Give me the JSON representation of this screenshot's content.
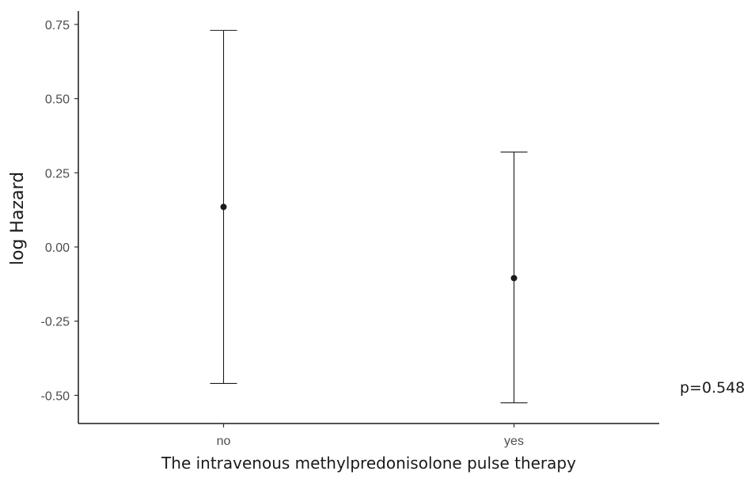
{
  "chart_data": {
    "type": "errorbar",
    "title": "",
    "xlabel": "The intravenous methylpredonisolone pulse therapy",
    "ylabel": "log Hazard",
    "categories": [
      "no",
      "yes"
    ],
    "points": [
      {
        "category": "no",
        "estimate": 0.135,
        "lower": -0.46,
        "upper": 0.73
      },
      {
        "category": "yes",
        "estimate": -0.105,
        "lower": -0.525,
        "upper": 0.32
      }
    ],
    "ylim": [
      -0.595,
      0.795
    ],
    "yticks": [
      0.75,
      0.5,
      0.25,
      0.0,
      -0.25,
      -0.5
    ],
    "ytick_labels": [
      "0.75",
      "0.50",
      "0.25",
      "0.00",
      "-0.25",
      "-0.50"
    ],
    "grid": false,
    "annotation": "p=0.548",
    "colors": {
      "marks": "#1a1a1a",
      "axis": "#1a1a1a",
      "ticks": "#4d4d4d"
    }
  }
}
